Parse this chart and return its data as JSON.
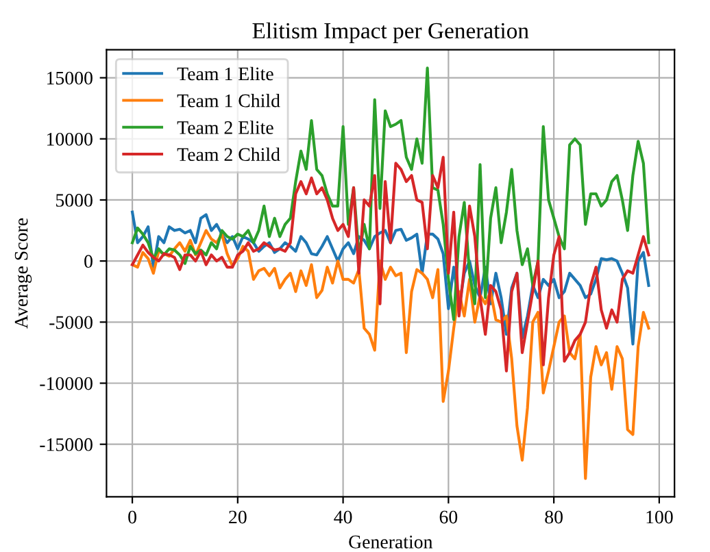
{
  "chart_data": {
    "type": "line",
    "title": "Elitism Impact per Generation",
    "xlabel": "Generation",
    "ylabel": "Average Score",
    "x": [
      0,
      1,
      2,
      3,
      4,
      5,
      6,
      7,
      8,
      9,
      10,
      11,
      12,
      13,
      14,
      15,
      16,
      17,
      18,
      19,
      20,
      21,
      22,
      23,
      24,
      25,
      26,
      27,
      28,
      29,
      30,
      31,
      32,
      33,
      34,
      35,
      36,
      37,
      38,
      39,
      40,
      41,
      42,
      43,
      44,
      45,
      46,
      47,
      48,
      49,
      50,
      51,
      52,
      53,
      54,
      55,
      56,
      57,
      58,
      59,
      60,
      61,
      62,
      63,
      64,
      65,
      66,
      67,
      68,
      69,
      70,
      71,
      72,
      73,
      74,
      75,
      76,
      77,
      78,
      79,
      80,
      81,
      82,
      83,
      84,
      85,
      86,
      87,
      88,
      89,
      90,
      91,
      92,
      93,
      94,
      95,
      96,
      97,
      98
    ],
    "series": [
      {
        "name": "Team 1 Elite",
        "color": "#1f77b4",
        "values": [
          4000,
          1500,
          2000,
          2800,
          -500,
          2000,
          1500,
          2800,
          2500,
          2600,
          2300,
          2500,
          1500,
          3500,
          3800,
          2500,
          3000,
          2200,
          1500,
          2000,
          1000,
          2000,
          1800,
          1500,
          800,
          1200,
          1500,
          700,
          1000,
          1500,
          1200,
          800,
          2000,
          1500,
          600,
          500,
          1200,
          2000,
          1000,
          0,
          1000,
          1500,
          600,
          2000,
          1700,
          1000,
          2000,
          2300,
          2500,
          1500,
          2500,
          2600,
          1700,
          1900,
          2200,
          -1000,
          2200,
          2200,
          1800,
          600,
          -3900,
          -500,
          -3800,
          -1000,
          0,
          -2000,
          -3000,
          -500,
          -3500,
          -1000,
          -3000,
          -6000,
          -2200,
          -1000,
          -6300,
          -4500,
          -2000,
          -3000,
          -1500,
          -2000,
          -1500,
          -3000,
          -2500,
          -1000,
          -1500,
          -2000,
          -3000,
          -2700,
          -1500,
          200,
          100,
          200,
          0,
          -1000,
          -2200,
          -6800,
          0,
          700,
          -2000
        ]
      },
      {
        "name": "Team 1 Child",
        "color": "#ff7f0e",
        "values": [
          -300,
          -500,
          700,
          200,
          -1000,
          800,
          600,
          400,
          1000,
          1500,
          800,
          1700,
          500,
          1500,
          2500,
          1800,
          1500,
          2200,
          600,
          -400,
          200,
          1200,
          800,
          -1500,
          -800,
          -600,
          -1200,
          -600,
          -2200,
          -1500,
          -1000,
          -2500,
          -800,
          -2000,
          -300,
          -3000,
          -2400,
          -500,
          -1800,
          0,
          -1500,
          -1500,
          -1800,
          -700,
          -5500,
          -6000,
          -7300,
          0,
          -1500,
          -500,
          -1200,
          -1000,
          -7500,
          -2500,
          -700,
          -1000,
          -1500,
          -3000,
          -700,
          -11500,
          -9000,
          -5500,
          -2500,
          -4500,
          -1500,
          -5000,
          -2800,
          -3500,
          -2500,
          -4800,
          -5000,
          -4500,
          -8000,
          -13500,
          -16300,
          -12000,
          -5000,
          -4200,
          -10800,
          -9000,
          -7000,
          -5000,
          -4500,
          -7500,
          -8000,
          -6000,
          -17800,
          -9500,
          -7000,
          -8500,
          -7500,
          -10500,
          -7000,
          -8000,
          -13800,
          -14200,
          -7000,
          -4200,
          -5500
        ]
      },
      {
        "name": "Team 2 Elite",
        "color": "#2ca02c",
        "values": [
          1500,
          2700,
          2200,
          1500,
          200,
          1000,
          500,
          1000,
          900,
          500,
          -200,
          1200,
          600,
          900,
          500,
          1500,
          1000,
          2500,
          2000,
          1800,
          2200,
          2000,
          2500,
          1500,
          2500,
          4500,
          2000,
          3500,
          2000,
          3000,
          3500,
          6500,
          9000,
          7500,
          11500,
          7500,
          7000,
          5500,
          4500,
          4500,
          11000,
          3000,
          6000,
          500,
          3000,
          1000,
          13200,
          4300,
          12300,
          11000,
          11200,
          11500,
          8500,
          7500,
          10000,
          8000,
          15800,
          6000,
          5800,
          3000,
          -1500,
          -4800,
          2000,
          4800,
          -1000,
          -3500,
          7900,
          -3000,
          3500,
          6000,
          1500,
          4000,
          7500,
          2500,
          -300,
          1000,
          -2000,
          0,
          11000,
          5000,
          3500,
          2000,
          1000,
          9500,
          10000,
          9500,
          3000,
          5500,
          5500,
          4500,
          5000,
          6500,
          7000,
          5000,
          2500,
          7000,
          9800,
          8000,
          1500
        ]
      },
      {
        "name": "Team 2 Child",
        "color": "#d62728",
        "values": [
          -300,
          500,
          1300,
          700,
          300,
          0,
          600,
          500,
          300,
          -700,
          500,
          500,
          0,
          800,
          -300,
          500,
          0,
          300,
          -500,
          -500,
          500,
          800,
          1500,
          800,
          1000,
          1500,
          1200,
          900,
          1000,
          800,
          1500,
          5500,
          6500,
          5500,
          6800,
          5500,
          6000,
          5000,
          3500,
          2500,
          3000,
          2000,
          6000,
          -1000,
          5000,
          4500,
          7000,
          -3500,
          6500,
          1500,
          8000,
          7500,
          6500,
          7000,
          5000,
          4800,
          1000,
          7000,
          6000,
          8500,
          -1000,
          4000,
          -4500,
          -500,
          4500,
          2000,
          -3000,
          -6000,
          -2000,
          -2500,
          -4000,
          -9000,
          -2500,
          -1000,
          -7500,
          -5000,
          -2500,
          0,
          -8500,
          -3000,
          500,
          2000,
          -8200,
          -7500,
          -6500,
          -6000,
          -5000,
          -2000,
          -500,
          -4000,
          -5500,
          -4000,
          -5000,
          -1500,
          -800,
          -1000,
          500,
          2000,
          500
        ]
      }
    ],
    "xlim": [
      -4.9,
      102.9
    ],
    "xticks": [
      0,
      20,
      40,
      60,
      80,
      100
    ],
    "ylim": [
      -19300,
      17300
    ],
    "yticks": [
      -15000,
      -10000,
      -5000,
      0,
      5000,
      10000,
      15000
    ],
    "grid": true,
    "legend": "upper left",
    "line_style": "solid",
    "marker": "none"
  }
}
